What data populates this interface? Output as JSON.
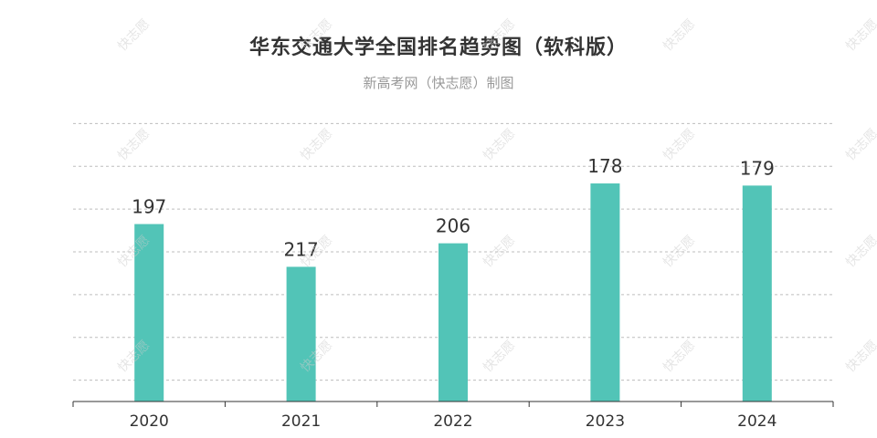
{
  "title": "华东交通大学全国排名趋势图（软科版）",
  "subtitle": "新高考网（快志愿）制图",
  "watermark": "快志愿",
  "colors": {
    "bar": "#52c4b7",
    "grid": "#bdbdbd",
    "axis": "#333333",
    "text": "#333333"
  },
  "chart_data": {
    "type": "bar",
    "title": "华东交通大学全国排名趋势图（软科版）",
    "subtitle": "新高考网（快志愿）制图",
    "categories": [
      "2020",
      "2021",
      "2022",
      "2023",
      "2024"
    ],
    "values": [
      197,
      217,
      206,
      178,
      179
    ],
    "data_labels": [
      "197",
      "217",
      "206",
      "178",
      "179"
    ],
    "y_axis_inverted": true,
    "ylim": [
      140,
      280
    ],
    "y_tick_labels_visible": false,
    "grid": true
  }
}
